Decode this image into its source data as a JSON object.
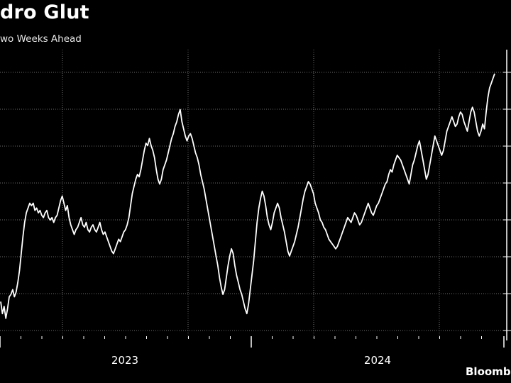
{
  "title": "dro Glut",
  "subtitle": "wo Weeks Ahead",
  "source": "Bloomb",
  "colors": {
    "background": "#000000",
    "line": "#ffffff",
    "grid": "#6b6b6b",
    "axis": "#ffffff",
    "text": "#ffffff"
  },
  "chart_data": {
    "type": "line",
    "title": "dro Glut",
    "subtitle": "wo Weeks Ahead",
    "xlabel": "",
    "ylabel": "",
    "x_tick_labels": [
      "2023",
      "2024"
    ],
    "grid": "dotted horizontal and vertical",
    "legend": "none",
    "y_axis_side": "right",
    "y_tick_labels_visible": false,
    "series": [
      {
        "name": "",
        "values": [
          25,
          20,
          23,
          18,
          22,
          27,
          28,
          30,
          27,
          29,
          33,
          38,
          45,
          52,
          58,
          62,
          64,
          66,
          65,
          66,
          63,
          64,
          62,
          63,
          61,
          60,
          62,
          63,
          60,
          59,
          60,
          58,
          60,
          61,
          64,
          67,
          69,
          66,
          63,
          65,
          60,
          57,
          55,
          53,
          55,
          56,
          58,
          60,
          57,
          56,
          58,
          55,
          54,
          56,
          57,
          55,
          54,
          56,
          58,
          55,
          53,
          54,
          52,
          50,
          48,
          46,
          45,
          47,
          49,
          51,
          50,
          52,
          54,
          55,
          57,
          60,
          65,
          70,
          73,
          76,
          78,
          77,
          80,
          84,
          88,
          91,
          90,
          93,
          90,
          88,
          85,
          80,
          76,
          74,
          76,
          80,
          82,
          84,
          87,
          90,
          93,
          95,
          98,
          100,
          103,
          105,
          100,
          97,
          94,
          92,
          94,
          95,
          93,
          90,
          87,
          85,
          82,
          78,
          75,
          72,
          68,
          64,
          60,
          56,
          52,
          48,
          44,
          40,
          35,
          31,
          28,
          30,
          35,
          40,
          44,
          47,
          45,
          40,
          36,
          33,
          30,
          28,
          25,
          22,
          20,
          24,
          30,
          36,
          42,
          50,
          58,
          64,
          68,
          71,
          69,
          65,
          60,
          57,
          55,
          58,
          62,
          64,
          66,
          64,
          60,
          57,
          54,
          50,
          46,
          44,
          46,
          48,
          50,
          53,
          56,
          60,
          64,
          68,
          71,
          73,
          75,
          74,
          72,
          70,
          66,
          64,
          62,
          59,
          58,
          56,
          55,
          53,
          51,
          50,
          49,
          48,
          47,
          48,
          50,
          52,
          54,
          56,
          58,
          60,
          59,
          58,
          60,
          62,
          61,
          59,
          57,
          58,
          60,
          62,
          64,
          66,
          64,
          62,
          61,
          63,
          65,
          66,
          68,
          70,
          72,
          74,
          75,
          78,
          80,
          79,
          82,
          84,
          86,
          85,
          84,
          82,
          80,
          78,
          76,
          74,
          78,
          82,
          84,
          87,
          90,
          92,
          88,
          84,
          80,
          76,
          78,
          82,
          86,
          90,
          94,
          92,
          90,
          88,
          86,
          88,
          92,
          96,
          98,
          100,
          102,
          100,
          98,
          99,
          102,
          104,
          103,
          100,
          98,
          96,
          100,
          104,
          106,
          104,
          100,
          96,
          94,
          96,
          99,
          97,
          104,
          110,
          114,
          116,
          118,
          120
        ]
      }
    ],
    "ylim": [
      10,
      130
    ]
  }
}
